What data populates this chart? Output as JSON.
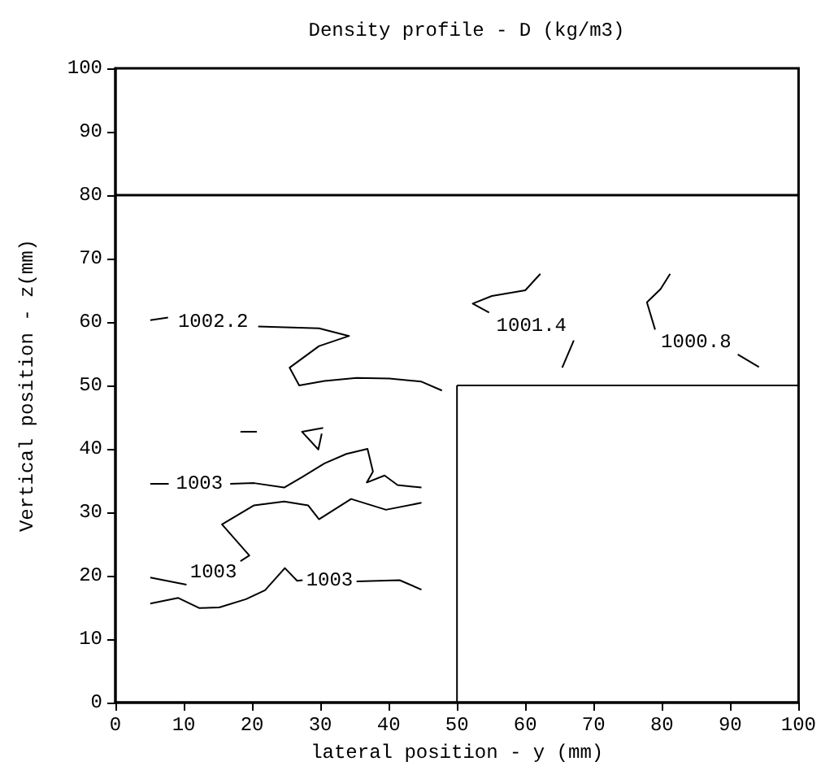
{
  "chart_data": {
    "type": "line",
    "title": "Density profile - D (kg/m3)",
    "xlabel": "lateral position - y (mm)",
    "ylabel": "Vertical position - z(mm)",
    "xlim": [
      0,
      100
    ],
    "xticks": [
      0,
      10,
      20,
      30,
      40,
      50,
      60,
      70,
      80,
      90,
      100
    ],
    "ylim": [
      0,
      100
    ],
    "yticks": [
      0,
      10,
      20,
      30,
      40,
      50,
      60,
      70,
      80,
      90,
      100
    ],
    "marker": "none",
    "line_style": "solid",
    "grid": false,
    "series": [
      {
        "name": "1002.2",
        "color": "#000000",
        "x": [
          5.1,
          7.7,
          14.3,
          20.9,
          29.8,
          34.2,
          29.8,
          25.5,
          26.9,
          30.6,
          35.3,
          40.1,
          44.8,
          47.8
        ],
        "values": [
          60.3,
          60.7,
          null,
          59.3,
          59.0,
          57.8,
          56.2,
          52.8,
          50.0,
          50.7,
          51.2,
          51.1,
          50.6,
          49.2
        ]
      },
      {
        "name": "1003",
        "color": "#000000",
        "x": [
          5.1,
          7.8,
          12.3,
          16.8,
          20.3,
          24.7,
          27.4,
          30.6,
          33.8,
          36.9,
          37.7,
          36.8,
          39.4,
          41.3,
          44.8
        ],
        "values": [
          34.5,
          34.5,
          null,
          34.5,
          34.6,
          33.9,
          35.6,
          37.7,
          39.2,
          40.0,
          36.4,
          34.7,
          35.8,
          34.3,
          33.9
        ]
      },
      {
        "name": "1003",
        "color": "#000000",
        "x": [
          5.1,
          10.4,
          14.35,
          18.3,
          19.6,
          15.6,
          20.3,
          24.7,
          28.2,
          29.8,
          34.5,
          39.6,
          44.8
        ],
        "values": [
          19.7,
          18.6,
          null,
          22.3,
          23.2,
          28.1,
          31.1,
          31.7,
          31.1,
          28.9,
          32.1,
          30.4,
          31.5
        ]
      },
      {
        "name": "1003",
        "color": "#000000",
        "x": [
          5.1,
          9.2,
          12.3,
          15.2,
          19.1,
          21.9,
          24.8,
          26.6,
          27.4,
          31.35,
          35.3,
          41.6,
          44.8
        ],
        "values": [
          15.6,
          16.5,
          14.9,
          15.0,
          16.3,
          17.7,
          21.2,
          19.2,
          19.3,
          null,
          19.1,
          19.3,
          17.8
        ]
      },
      {
        "name": "1001.4",
        "color": "#000000",
        "x": [
          62.2,
          60.0,
          55.1,
          52.3,
          54.7,
          60.9,
          67.1,
          65.4
        ],
        "values": [
          67.6,
          65.0,
          64.1,
          62.9,
          61.5,
          null,
          57.1,
          52.8
        ]
      },
      {
        "name": "1000.8",
        "color": "#000000",
        "x": [
          81.2,
          79.8,
          77.8,
          79.0,
          85.0,
          91.1,
          94.2
        ],
        "values": [
          67.6,
          65.2,
          63.1,
          58.8,
          null,
          54.9,
          52.9
        ]
      },
      {
        "color": "#000000",
        "x": [
          18.3,
          20.7
        ],
        "values": [
          42.7,
          42.7
        ]
      },
      {
        "color": "#000000",
        "x": [
          30.4,
          27.3,
          29.7,
          30.2
        ],
        "values": [
          43.3,
          42.7,
          39.9,
          42.4
        ]
      },
      {
        "color": "#000000",
        "x": [
          50,
          50
        ],
        "values": [
          0,
          50
        ]
      },
      {
        "color": "#000000",
        "x": [
          50,
          100
        ],
        "values": [
          50,
          50
        ]
      }
    ],
    "ref_lines": [
      {
        "axis": "y",
        "value": 80,
        "color": "#000000",
        "line_style": "solid"
      }
    ]
  }
}
